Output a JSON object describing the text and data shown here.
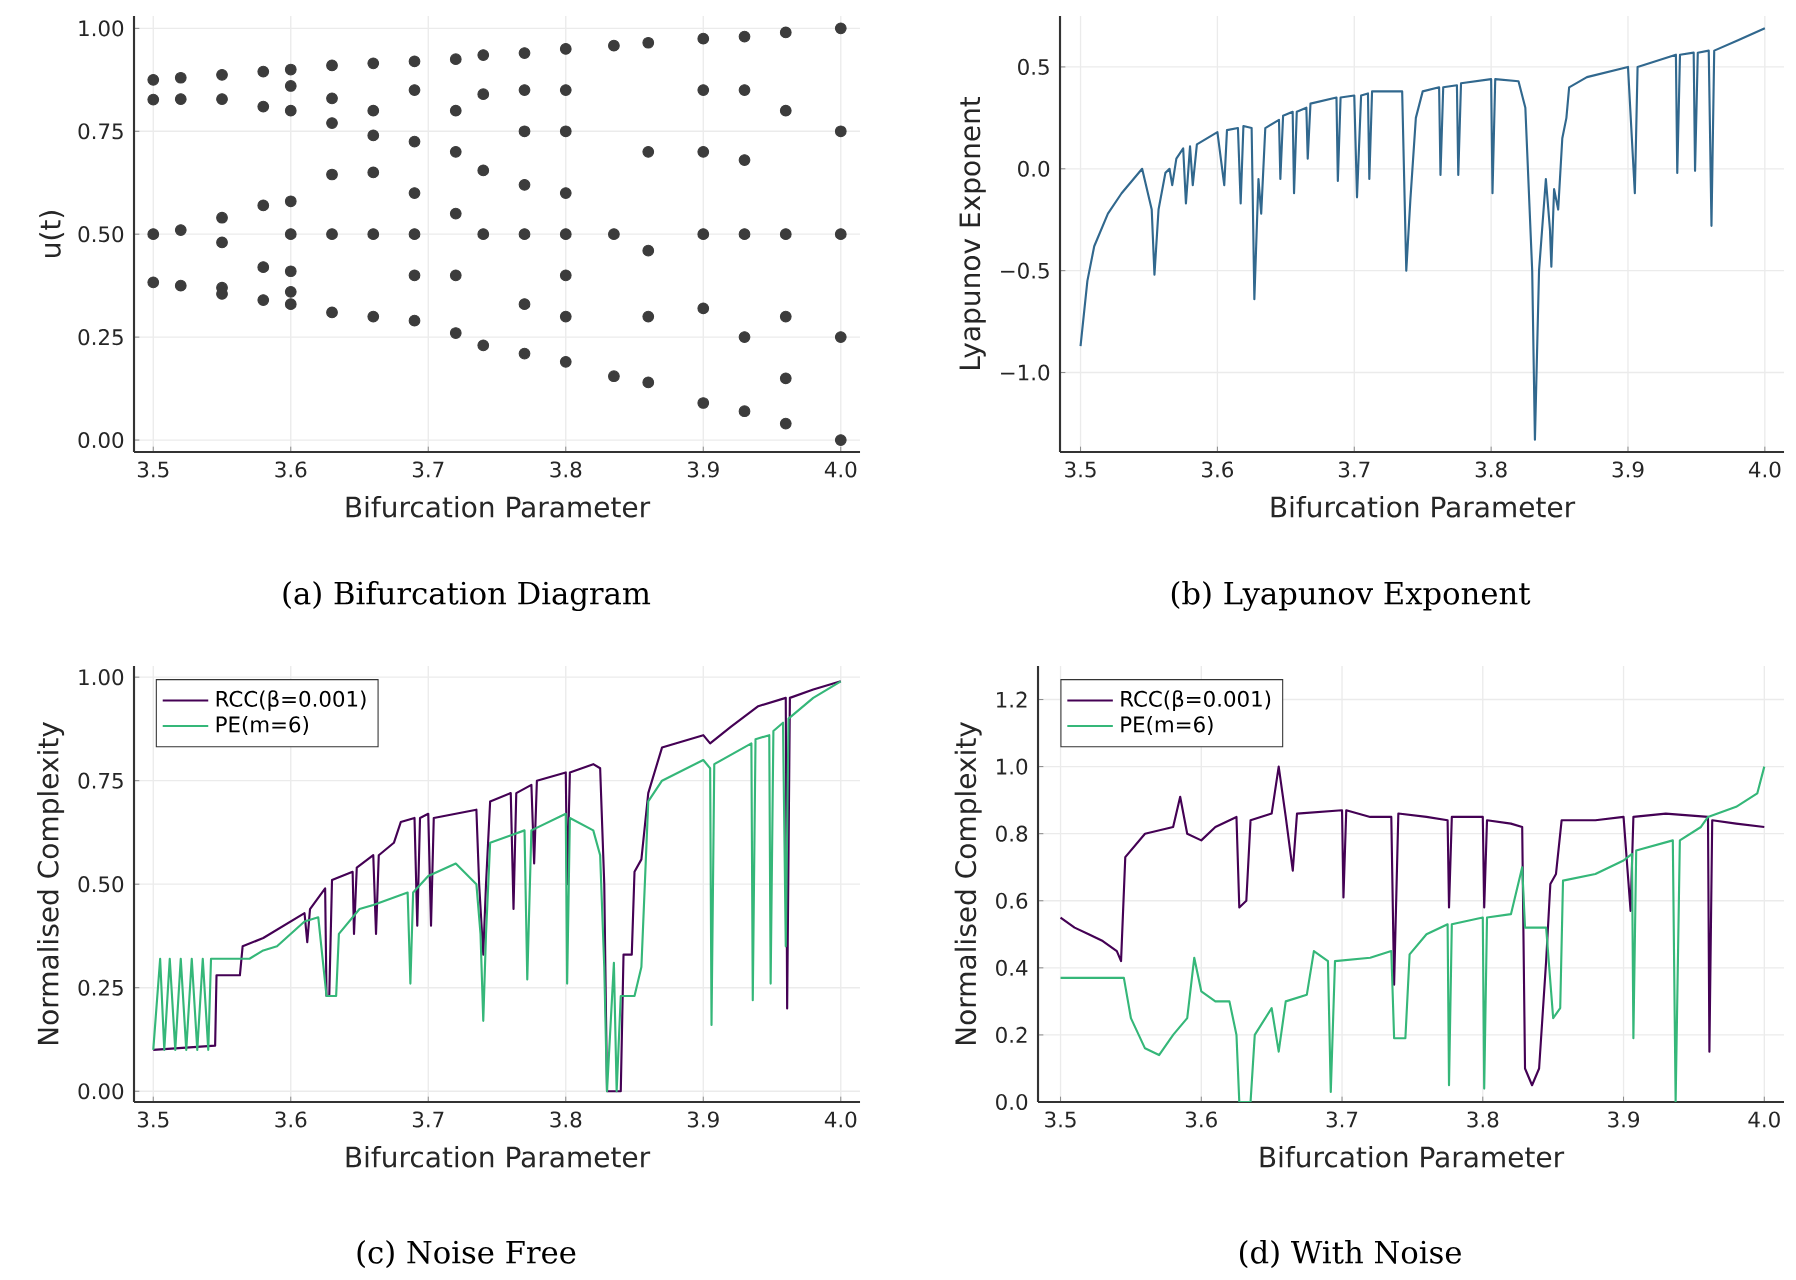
{
  "chart_data": [
    {
      "type": "scatter",
      "xlabel": "Bifurcation Parameter",
      "ylabel": "u(t)",
      "annotations": [
        "(a) Bifurcation Diagram"
      ],
      "marker": "circle",
      "color": "#3c3c3c",
      "grid": true,
      "x": [
        3.5,
        3.5,
        3.5,
        3.5,
        3.52,
        3.52,
        3.52,
        3.52,
        3.55,
        3.55,
        3.55,
        3.55,
        3.55,
        3.55,
        3.58,
        3.58,
        3.58,
        3.58,
        3.58,
        3.6,
        3.6,
        3.6,
        3.6,
        3.6,
        3.6,
        3.6,
        3.6,
        3.63,
        3.63,
        3.63,
        3.63,
        3.63,
        3.63,
        3.66,
        3.66,
        3.66,
        3.66,
        3.66,
        3.66,
        3.69,
        3.69,
        3.69,
        3.69,
        3.69,
        3.69,
        3.69,
        3.72,
        3.72,
        3.72,
        3.72,
        3.72,
        3.72,
        3.74,
        3.74,
        3.74,
        3.74,
        3.74,
        3.77,
        3.77,
        3.77,
        3.77,
        3.77,
        3.77,
        3.77,
        3.8,
        3.8,
        3.8,
        3.8,
        3.8,
        3.8,
        3.8,
        3.8,
        3.835,
        3.835,
        3.835,
        3.86,
        3.86,
        3.86,
        3.86,
        3.86,
        3.9,
        3.9,
        3.9,
        3.9,
        3.9,
        3.9,
        3.93,
        3.93,
        3.93,
        3.93,
        3.93,
        3.93,
        3.96,
        3.96,
        3.96,
        3.96,
        3.96,
        3.96,
        4.0,
        4.0,
        4.0,
        4.0,
        4.0
      ],
      "values": [
        0.875,
        0.827,
        0.5,
        0.383,
        0.88,
        0.828,
        0.51,
        0.375,
        0.887,
        0.828,
        0.54,
        0.48,
        0.37,
        0.355,
        0.895,
        0.81,
        0.57,
        0.42,
        0.34,
        0.9,
        0.86,
        0.8,
        0.58,
        0.5,
        0.41,
        0.36,
        0.33,
        0.91,
        0.83,
        0.77,
        0.645,
        0.5,
        0.31,
        0.915,
        0.8,
        0.74,
        0.65,
        0.5,
        0.3,
        0.92,
        0.85,
        0.725,
        0.6,
        0.5,
        0.4,
        0.29,
        0.925,
        0.8,
        0.7,
        0.55,
        0.4,
        0.26,
        0.935,
        0.84,
        0.655,
        0.5,
        0.23,
        0.94,
        0.85,
        0.75,
        0.62,
        0.5,
        0.33,
        0.21,
        0.95,
        0.85,
        0.75,
        0.6,
        0.5,
        0.4,
        0.3,
        0.19,
        0.958,
        0.5,
        0.155,
        0.965,
        0.7,
        0.46,
        0.3,
        0.14,
        0.975,
        0.85,
        0.7,
        0.5,
        0.32,
        0.09,
        0.98,
        0.85,
        0.68,
        0.5,
        0.25,
        0.07,
        0.99,
        0.8,
        0.5,
        0.3,
        0.15,
        0.04,
        1.0,
        0.75,
        0.5,
        0.25,
        0.0
      ],
      "xlim": [
        3.486,
        4.014
      ],
      "ylim": [
        -0.029,
        1.03
      ],
      "xticks": [
        {
          "value": 3.5,
          "label": "3.5"
        },
        {
          "value": 3.6,
          "label": "3.6"
        },
        {
          "value": 3.7,
          "label": "3.7"
        },
        {
          "value": 3.8,
          "label": "3.8"
        },
        {
          "value": 3.9,
          "label": "3.9"
        },
        {
          "value": 4,
          "label": "4.0"
        }
      ],
      "yticks": [
        {
          "value": 0,
          "label": "0.00"
        },
        {
          "value": 0.25,
          "label": "0.25"
        },
        {
          "value": 0.5,
          "label": "0.50"
        },
        {
          "value": 0.75,
          "label": "0.75"
        },
        {
          "value": 1,
          "label": "1.00"
        }
      ]
    },
    {
      "type": "line",
      "xlabel": "Bifurcation Parameter",
      "ylabel": "Lyapunov Exponent",
      "annotations": [
        "(b) Lyapunov Exponent"
      ],
      "color": "#31688e",
      "grid": true,
      "x": [
        3.5,
        3.505,
        3.51,
        3.52,
        3.53,
        3.545,
        3.552,
        3.554,
        3.557,
        3.562,
        3.565,
        3.567,
        3.57,
        3.575,
        3.577,
        3.58,
        3.582,
        3.585,
        3.6,
        3.605,
        3.607,
        3.615,
        3.617,
        3.619,
        3.625,
        3.627,
        3.63,
        3.632,
        3.635,
        3.645,
        3.646,
        3.648,
        3.655,
        3.656,
        3.658,
        3.665,
        3.666,
        3.668,
        3.687,
        3.688,
        3.69,
        3.7,
        3.702,
        3.705,
        3.71,
        3.711,
        3.713,
        3.735,
        3.738,
        3.741,
        3.745,
        3.75,
        3.762,
        3.763,
        3.765,
        3.775,
        3.776,
        3.778,
        3.8,
        3.801,
        3.803,
        3.82,
        3.825,
        3.83,
        3.832,
        3.835,
        3.84,
        3.843,
        3.844,
        3.846,
        3.849,
        3.852,
        3.855,
        3.857,
        3.87,
        3.9,
        3.905,
        3.907,
        3.935,
        3.936,
        3.938,
        3.948,
        3.949,
        3.951,
        3.959,
        3.961,
        3.963,
        3.98,
        4.0
      ],
      "values": [
        -0.87,
        -0.55,
        -0.38,
        -0.22,
        -0.12,
        0.0,
        -0.2,
        -0.52,
        -0.2,
        -0.02,
        0.0,
        -0.08,
        0.05,
        0.1,
        -0.17,
        0.11,
        -0.08,
        0.12,
        0.18,
        -0.08,
        0.19,
        0.2,
        -0.17,
        0.21,
        0.2,
        -0.64,
        -0.05,
        -0.22,
        0.2,
        0.24,
        -0.05,
        0.26,
        0.28,
        -0.12,
        0.28,
        0.3,
        0.05,
        0.32,
        0.35,
        -0.06,
        0.35,
        0.36,
        -0.14,
        0.36,
        0.37,
        -0.05,
        0.38,
        0.38,
        -0.5,
        -0.15,
        0.25,
        0.38,
        0.4,
        -0.03,
        0.4,
        0.41,
        -0.03,
        0.42,
        0.44,
        -0.12,
        0.44,
        0.43,
        0.3,
        -0.5,
        -1.33,
        -0.5,
        -0.05,
        -0.3,
        -0.48,
        -0.1,
        -0.2,
        0.15,
        0.25,
        0.4,
        0.45,
        0.5,
        -0.12,
        0.5,
        0.56,
        -0.02,
        0.56,
        0.57,
        -0.01,
        0.57,
        0.58,
        -0.28,
        0.58,
        0.63,
        0.69
      ],
      "xlim": [
        3.485,
        4.014
      ],
      "ylim": [
        -1.39,
        0.75
      ],
      "xticks": [
        {
          "value": 3.5,
          "label": "3.5"
        },
        {
          "value": 3.6,
          "label": "3.6"
        },
        {
          "value": 3.7,
          "label": "3.7"
        },
        {
          "value": 3.8,
          "label": "3.8"
        },
        {
          "value": 3.9,
          "label": "3.9"
        },
        {
          "value": 4,
          "label": "4.0"
        }
      ],
      "yticks": [
        {
          "value": -1,
          "label": "−1.0"
        },
        {
          "value": -0.5,
          "label": "−0.5"
        },
        {
          "value": 0,
          "label": "0.0"
        },
        {
          "value": 0.5,
          "label": "0.5"
        }
      ]
    },
    {
      "type": "line",
      "xlabel": "Bifurcation Parameter",
      "ylabel": "Normalised Complexity",
      "annotations": [
        "(c) Noise Free"
      ],
      "grid": true,
      "legend": "top left",
      "series": [
        {
          "name": "RCC(β=0.001)",
          "color": "#440154",
          "x": [
            3.5,
            3.545,
            3.546,
            3.563,
            3.565,
            3.58,
            3.6,
            3.61,
            3.612,
            3.614,
            3.625,
            3.626,
            3.628,
            3.63,
            3.645,
            3.646,
            3.648,
            3.66,
            3.662,
            3.664,
            3.675,
            3.68,
            3.69,
            3.692,
            3.694,
            3.7,
            3.702,
            3.704,
            3.72,
            3.735,
            3.737,
            3.74,
            3.742,
            3.745,
            3.76,
            3.762,
            3.764,
            3.775,
            3.777,
            3.779,
            3.8,
            3.801,
            3.803,
            3.82,
            3.825,
            3.828,
            3.83,
            3.84,
            3.842,
            3.848,
            3.85,
            3.855,
            3.86,
            3.87,
            3.9,
            3.905,
            3.92,
            3.94,
            3.96,
            3.961,
            3.963,
            3.98,
            4.0
          ],
          "values": [
            0.1,
            0.11,
            0.28,
            0.28,
            0.35,
            0.37,
            0.41,
            0.43,
            0.36,
            0.44,
            0.49,
            0.23,
            0.23,
            0.51,
            0.53,
            0.38,
            0.54,
            0.57,
            0.38,
            0.57,
            0.6,
            0.65,
            0.66,
            0.4,
            0.66,
            0.67,
            0.4,
            0.66,
            0.67,
            0.68,
            0.5,
            0.33,
            0.5,
            0.7,
            0.72,
            0.44,
            0.72,
            0.74,
            0.55,
            0.75,
            0.77,
            0.5,
            0.77,
            0.79,
            0.78,
            0.5,
            0.0,
            0.0,
            0.33,
            0.33,
            0.53,
            0.56,
            0.72,
            0.83,
            0.86,
            0.84,
            0.88,
            0.93,
            0.95,
            0.2,
            0.95,
            0.97,
            0.99
          ]
        },
        {
          "name": "PE(m=6)",
          "color": "#35b779",
          "x": [
            3.5,
            3.505,
            3.508,
            3.512,
            3.516,
            3.52,
            3.524,
            3.528,
            3.532,
            3.536,
            3.54,
            3.542,
            3.57,
            3.58,
            3.59,
            3.6,
            3.61,
            3.62,
            3.626,
            3.633,
            3.635,
            3.65,
            3.66,
            3.685,
            3.687,
            3.689,
            3.7,
            3.72,
            3.735,
            3.738,
            3.74,
            3.742,
            3.745,
            3.77,
            3.772,
            3.775,
            3.8,
            3.801,
            3.803,
            3.82,
            3.825,
            3.828,
            3.83,
            3.835,
            3.837,
            3.84,
            3.85,
            3.855,
            3.86,
            3.87,
            3.9,
            3.905,
            3.906,
            3.908,
            3.935,
            3.936,
            3.938,
            3.948,
            3.949,
            3.951,
            3.958,
            3.96,
            3.962,
            3.98,
            4.0
          ],
          "values": [
            0.1,
            0.32,
            0.1,
            0.32,
            0.1,
            0.32,
            0.1,
            0.32,
            0.1,
            0.32,
            0.1,
            0.32,
            0.32,
            0.34,
            0.35,
            0.38,
            0.41,
            0.42,
            0.23,
            0.23,
            0.38,
            0.44,
            0.45,
            0.48,
            0.26,
            0.48,
            0.52,
            0.55,
            0.5,
            0.38,
            0.17,
            0.38,
            0.6,
            0.63,
            0.27,
            0.63,
            0.67,
            0.26,
            0.66,
            0.63,
            0.57,
            0.3,
            0.0,
            0.31,
            0.0,
            0.23,
            0.23,
            0.3,
            0.7,
            0.75,
            0.8,
            0.78,
            0.16,
            0.79,
            0.84,
            0.22,
            0.85,
            0.86,
            0.26,
            0.87,
            0.89,
            0.35,
            0.9,
            0.95,
            0.99
          ]
        }
      ],
      "xlim": [
        3.486,
        4.014
      ],
      "ylim": [
        -0.026,
        1.027
      ],
      "xticks": [
        {
          "value": 3.5,
          "label": "3.5"
        },
        {
          "value": 3.6,
          "label": "3.6"
        },
        {
          "value": 3.7,
          "label": "3.7"
        },
        {
          "value": 3.8,
          "label": "3.8"
        },
        {
          "value": 3.9,
          "label": "3.9"
        },
        {
          "value": 4,
          "label": "4.0"
        }
      ],
      "yticks": [
        {
          "value": 0,
          "label": "0.00"
        },
        {
          "value": 0.25,
          "label": "0.25"
        },
        {
          "value": 0.5,
          "label": "0.50"
        },
        {
          "value": 0.75,
          "label": "0.75"
        },
        {
          "value": 1,
          "label": "1.00"
        }
      ]
    },
    {
      "type": "line",
      "xlabel": "Bifurcation Parameter",
      "ylabel": "Normalised Complexity",
      "annotations": [
        "(d) With Noise"
      ],
      "grid": true,
      "legend": "top left",
      "series": [
        {
          "name": "RCC(β=0.001)",
          "color": "#440154",
          "x": [
            3.5,
            3.51,
            3.52,
            3.53,
            3.54,
            3.543,
            3.546,
            3.56,
            3.58,
            3.585,
            3.59,
            3.6,
            3.61,
            3.625,
            3.627,
            3.632,
            3.635,
            3.65,
            3.655,
            3.66,
            3.665,
            3.668,
            3.7,
            3.701,
            3.703,
            3.72,
            3.735,
            3.737,
            3.74,
            3.76,
            3.775,
            3.776,
            3.778,
            3.8,
            3.801,
            3.803,
            3.82,
            3.828,
            3.83,
            3.835,
            3.84,
            3.845,
            3.848,
            3.852,
            3.856,
            3.88,
            3.9,
            3.905,
            3.907,
            3.93,
            3.96,
            3.961,
            3.963,
            3.98,
            4.0
          ],
          "values": [
            0.55,
            0.52,
            0.5,
            0.48,
            0.45,
            0.42,
            0.73,
            0.8,
            0.82,
            0.91,
            0.8,
            0.78,
            0.82,
            0.85,
            0.58,
            0.6,
            0.84,
            0.86,
            1.0,
            0.85,
            0.69,
            0.86,
            0.87,
            0.61,
            0.87,
            0.85,
            0.85,
            0.35,
            0.86,
            0.85,
            0.84,
            0.58,
            0.85,
            0.85,
            0.58,
            0.84,
            0.83,
            0.82,
            0.1,
            0.05,
            0.1,
            0.42,
            0.65,
            0.68,
            0.84,
            0.84,
            0.85,
            0.57,
            0.85,
            0.86,
            0.85,
            0.15,
            0.84,
            0.83,
            0.82
          ]
        },
        {
          "name": "PE(m=6)",
          "color": "#35b779",
          "x": [
            3.5,
            3.545,
            3.55,
            3.56,
            3.57,
            3.58,
            3.59,
            3.595,
            3.6,
            3.61,
            3.62,
            3.625,
            3.627,
            3.635,
            3.638,
            3.65,
            3.655,
            3.66,
            3.675,
            3.68,
            3.69,
            3.692,
            3.695,
            3.72,
            3.735,
            3.737,
            3.745,
            3.748,
            3.76,
            3.775,
            3.776,
            3.778,
            3.8,
            3.801,
            3.803,
            3.82,
            3.828,
            3.83,
            3.845,
            3.85,
            3.855,
            3.857,
            3.88,
            3.9,
            3.906,
            3.907,
            3.909,
            3.935,
            3.937,
            3.94,
            3.955,
            3.96,
            3.98,
            3.995,
            4.0
          ],
          "values": [
            0.37,
            0.37,
            0.25,
            0.16,
            0.14,
            0.2,
            0.25,
            0.43,
            0.33,
            0.3,
            0.3,
            0.2,
            0.0,
            0.0,
            0.2,
            0.28,
            0.15,
            0.3,
            0.32,
            0.45,
            0.42,
            0.03,
            0.42,
            0.43,
            0.45,
            0.19,
            0.19,
            0.44,
            0.5,
            0.53,
            0.05,
            0.53,
            0.55,
            0.04,
            0.55,
            0.56,
            0.7,
            0.52,
            0.52,
            0.25,
            0.28,
            0.66,
            0.68,
            0.72,
            0.74,
            0.19,
            0.75,
            0.78,
            0.0,
            0.78,
            0.82,
            0.85,
            0.88,
            0.92,
            1.0
          ]
        }
      ],
      "xlim": [
        3.484,
        4.014
      ],
      "ylim": [
        0,
        1.3
      ],
      "xticks": [
        {
          "value": 3.5,
          "label": "3.5"
        },
        {
          "value": 3.6,
          "label": "3.6"
        },
        {
          "value": 3.7,
          "label": "3.7"
        },
        {
          "value": 3.8,
          "label": "3.8"
        },
        {
          "value": 3.9,
          "label": "3.9"
        },
        {
          "value": 4,
          "label": "4.0"
        }
      ],
      "yticks": [
        {
          "value": 0,
          "label": "0.0"
        },
        {
          "value": 0.2,
          "label": "0.2"
        },
        {
          "value": 0.4,
          "label": "0.4"
        },
        {
          "value": 0.6,
          "label": "0.6"
        },
        {
          "value": 0.8,
          "label": "0.8"
        },
        {
          "value": 1,
          "label": "1.0"
        },
        {
          "value": 1.2,
          "label": "1.2"
        }
      ]
    }
  ]
}
